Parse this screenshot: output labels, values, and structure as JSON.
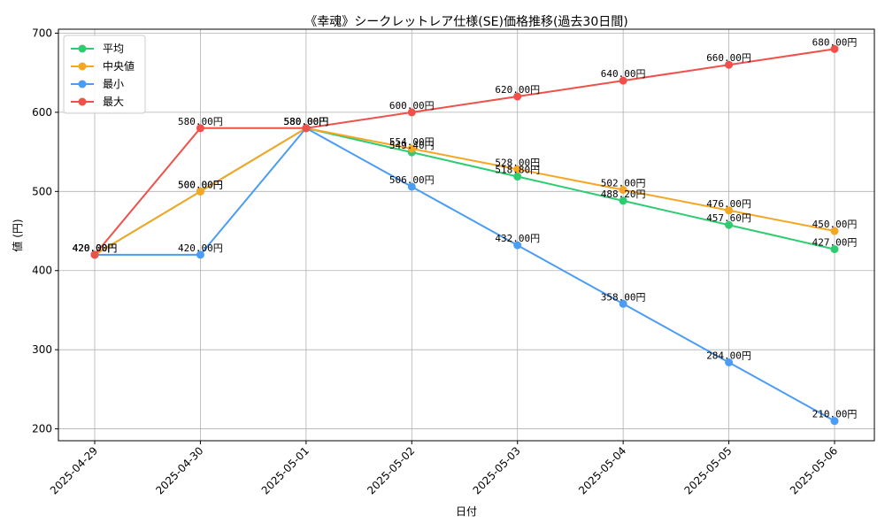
{
  "chart_data": {
    "type": "line",
    "title": "《幸魂》シークレットレア仕様(SE)価格推移(過去30日間)",
    "xlabel": "日付",
    "ylabel": "値 (円)",
    "x": [
      "2025-04-29",
      "2025-04-30",
      "2025-05-01",
      "2025-05-02",
      "2025-05-03",
      "2025-05-04",
      "2025-05-05",
      "2025-05-06"
    ],
    "ylim": [
      185,
      705
    ],
    "yticks": [
      200,
      300,
      400,
      500,
      600,
      700
    ],
    "grid": true,
    "legend_position": "top-left",
    "series": [
      {
        "name": "平均",
        "color": "#2ecc71",
        "values": [
          420,
          500,
          580,
          549.4,
          518.8,
          488.2,
          457.6,
          427
        ],
        "labels": [
          "420.00円",
          "500.00円",
          "580.00円",
          "549.40円",
          "518.80円",
          "488.20円",
          "457.60円",
          "427.00円"
        ]
      },
      {
        "name": "中央値",
        "color": "#f5a623",
        "values": [
          420,
          500,
          580,
          554,
          528,
          502,
          476,
          450
        ],
        "labels": [
          "420.00円",
          "500.00円",
          "580.00円",
          "554.00円",
          "528.00円",
          "502.00円",
          "476.00円",
          "450.00円"
        ]
      },
      {
        "name": "最小",
        "color": "#4a9cf5",
        "values": [
          420,
          420,
          580,
          506,
          432,
          358,
          284,
          210
        ],
        "labels": [
          "420.00円",
          "420.00円",
          "580.00円",
          "506.00円",
          "432.00円",
          "358.00円",
          "284.00円",
          "210.00円"
        ]
      },
      {
        "name": "最大",
        "color": "#f0504a",
        "values": [
          420,
          580,
          580,
          600,
          620,
          640,
          660,
          680
        ],
        "labels": [
          "420.00円",
          "580.00円",
          "580.00円",
          "600.00円",
          "620.00円",
          "640.00円",
          "660.00円",
          "680.00円"
        ]
      }
    ]
  }
}
